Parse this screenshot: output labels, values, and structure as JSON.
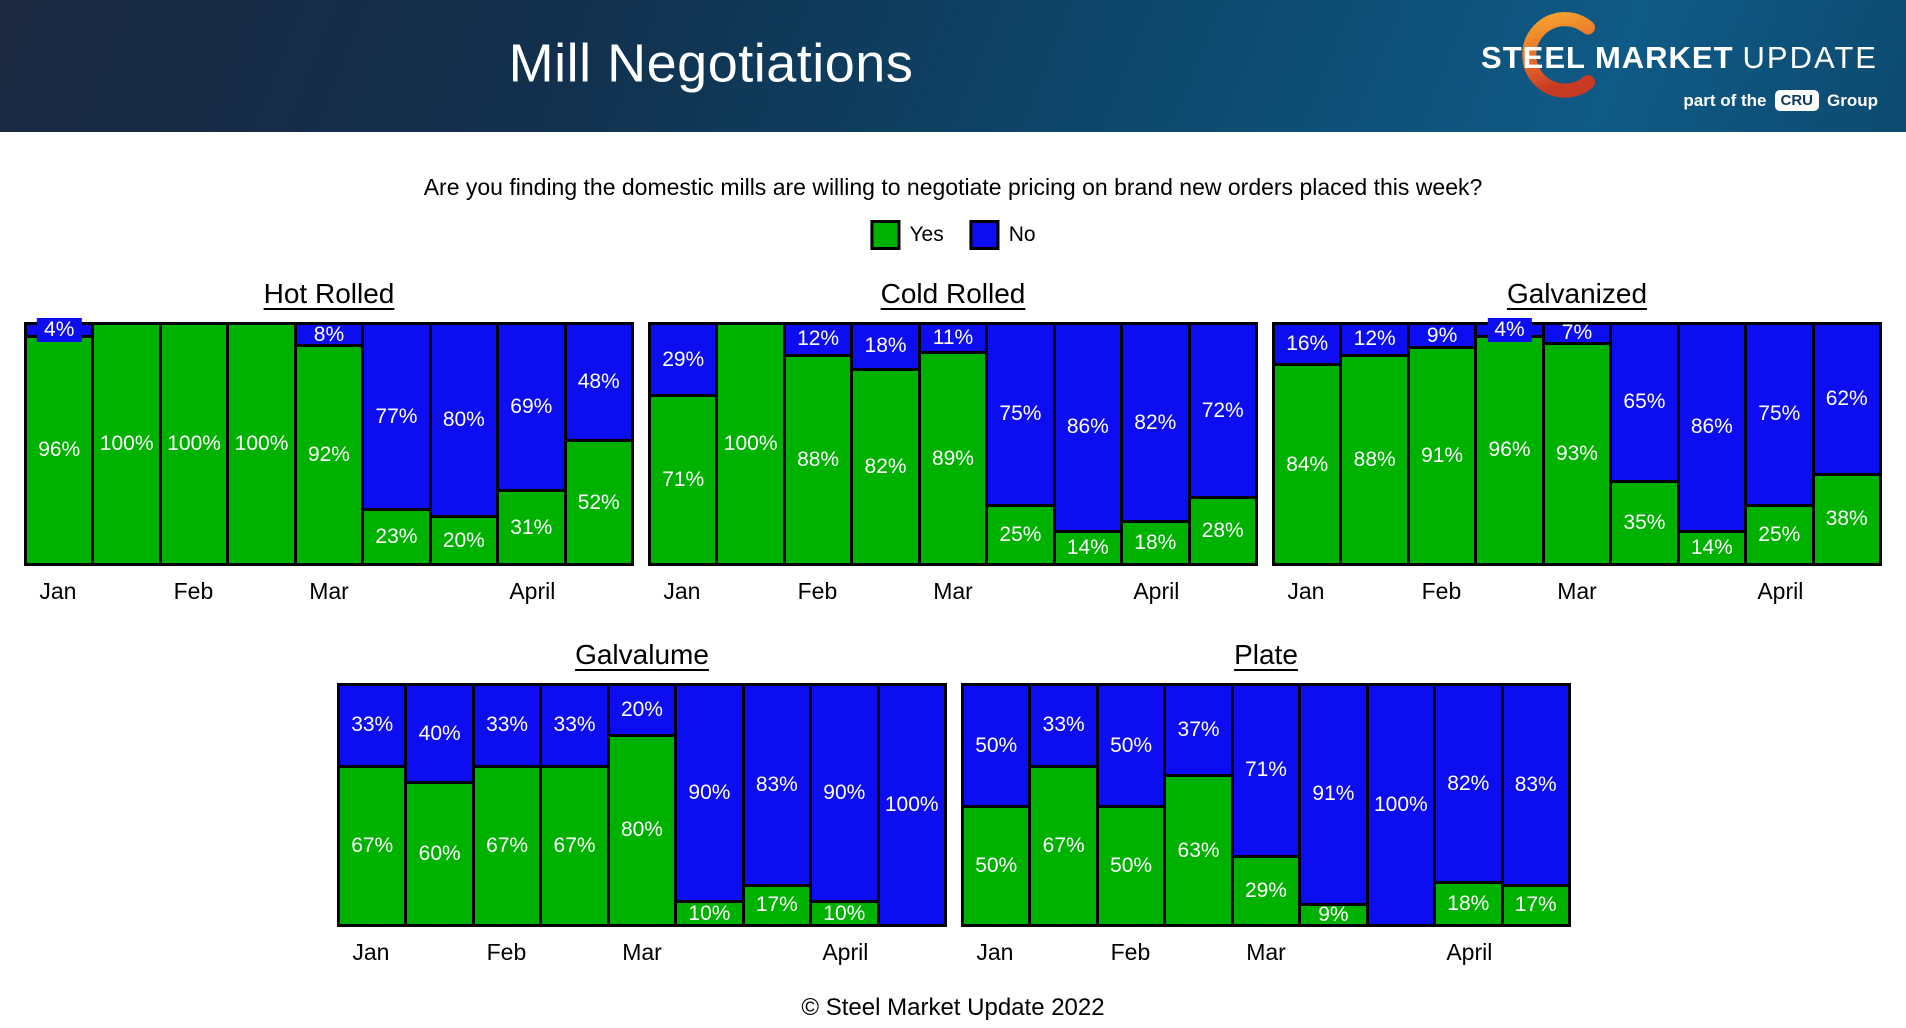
{
  "header": {
    "title": "Mill Negotiations",
    "logo": {
      "word1": "STEEL",
      "word2": "MARKET",
      "word3": "UPDATE",
      "tagline_prefix": "part of the",
      "cru": "CRU",
      "tagline_suffix": "Group"
    }
  },
  "question": "Are you finding the domestic mills are willing to negotiate pricing on brand new orders placed this week?",
  "legend": [
    {
      "label": "Yes",
      "color": "#00b200"
    },
    {
      "label": "No",
      "color": "#0d0df2"
    }
  ],
  "colors": {
    "yes": "#00b200",
    "no": "#0d0df2",
    "border": "#000000"
  },
  "chart_data": [
    {
      "type": "bar",
      "stacked": true,
      "title": "Hot Rolled",
      "unit": "%",
      "ylim": [
        0,
        100
      ],
      "x_ticks": [
        {
          "label": "Jan",
          "bar": 0
        },
        {
          "label": "Feb",
          "bar": 2
        },
        {
          "label": "Mar",
          "bar": 4
        },
        {
          "label": "April",
          "bar": 7
        }
      ],
      "series": [
        {
          "name": "Yes",
          "values": [
            96,
            100,
            100,
            100,
            92,
            23,
            20,
            31,
            52
          ]
        },
        {
          "name": "No",
          "values": [
            4,
            0,
            0,
            0,
            8,
            77,
            80,
            69,
            48
          ]
        }
      ]
    },
    {
      "type": "bar",
      "stacked": true,
      "title": "Cold Rolled",
      "unit": "%",
      "ylim": [
        0,
        100
      ],
      "x_ticks": [
        {
          "label": "Jan",
          "bar": 0
        },
        {
          "label": "Feb",
          "bar": 2
        },
        {
          "label": "Mar",
          "bar": 4
        },
        {
          "label": "April",
          "bar": 7
        }
      ],
      "series": [
        {
          "name": "Yes",
          "values": [
            71,
            100,
            88,
            82,
            89,
            25,
            14,
            18,
            28
          ]
        },
        {
          "name": "No",
          "values": [
            29,
            0,
            12,
            18,
            11,
            75,
            86,
            82,
            72
          ]
        }
      ]
    },
    {
      "type": "bar",
      "stacked": true,
      "title": "Galvanized",
      "unit": "%",
      "ylim": [
        0,
        100
      ],
      "x_ticks": [
        {
          "label": "Jan",
          "bar": 0
        },
        {
          "label": "Feb",
          "bar": 2
        },
        {
          "label": "Mar",
          "bar": 4
        },
        {
          "label": "April",
          "bar": 7
        }
      ],
      "series": [
        {
          "name": "Yes",
          "values": [
            84,
            88,
            91,
            96,
            93,
            35,
            14,
            25,
            38
          ]
        },
        {
          "name": "No",
          "values": [
            16,
            12,
            9,
            4,
            7,
            65,
            86,
            75,
            62
          ]
        }
      ]
    },
    {
      "type": "bar",
      "stacked": true,
      "title": "Galvalume",
      "unit": "%",
      "ylim": [
        0,
        100
      ],
      "x_ticks": [
        {
          "label": "Jan",
          "bar": 0
        },
        {
          "label": "Feb",
          "bar": 2
        },
        {
          "label": "Mar",
          "bar": 4
        },
        {
          "label": "April",
          "bar": 7
        }
      ],
      "series": [
        {
          "name": "Yes",
          "values": [
            67,
            60,
            67,
            67,
            80,
            10,
            17,
            10,
            0
          ]
        },
        {
          "name": "No",
          "values": [
            33,
            40,
            33,
            33,
            20,
            90,
            83,
            90,
            100
          ]
        }
      ]
    },
    {
      "type": "bar",
      "stacked": true,
      "title": "Plate",
      "unit": "%",
      "ylim": [
        0,
        100
      ],
      "x_ticks": [
        {
          "label": "Jan",
          "bar": 0
        },
        {
          "label": "Feb",
          "bar": 2
        },
        {
          "label": "Mar",
          "bar": 4
        },
        {
          "label": "April",
          "bar": 7
        }
      ],
      "series": [
        {
          "name": "Yes",
          "values": [
            50,
            67,
            50,
            63,
            29,
            9,
            0,
            18,
            17
          ]
        },
        {
          "name": "No",
          "values": [
            50,
            33,
            50,
            37,
            71,
            91,
            100,
            82,
            83
          ]
        }
      ]
    }
  ],
  "footer": "© Steel Market Update 2022"
}
